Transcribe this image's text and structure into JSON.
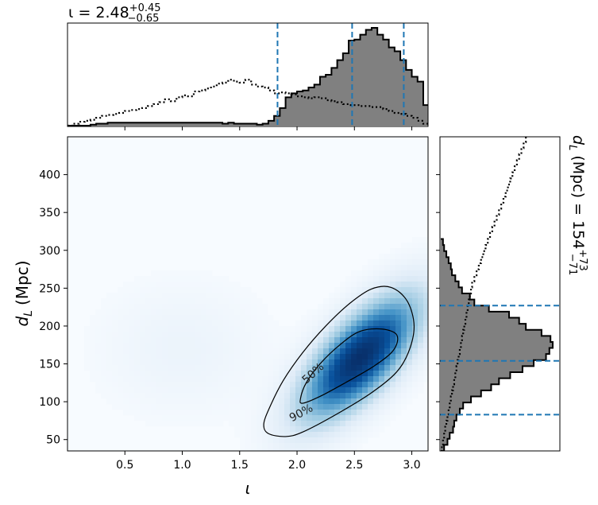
{
  "chart_data": [
    {
      "type": "heatmap",
      "panel": "joint",
      "xlabel": "ι",
      "ylabel_main": "d",
      "ylabel_sub": "L",
      "ylabel_unit": "(Mpc)",
      "xlim": [
        0.0,
        3.14159
      ],
      "ylim": [
        35,
        450
      ],
      "xticks": [
        0.5,
        1.0,
        1.5,
        2.0,
        2.5,
        3.0
      ],
      "xtick_labels": [
        "0.5",
        "1.0",
        "1.5",
        "2.0",
        "2.5",
        "3.0"
      ],
      "yticks": [
        50,
        100,
        150,
        200,
        250,
        300,
        350,
        400
      ],
      "ytick_labels": [
        "50",
        "100",
        "150",
        "200",
        "250",
        "300",
        "350",
        "400"
      ],
      "colormap": "Blues",
      "density_peaks": [
        {
          "iota": 2.55,
          "dL": 158,
          "weight": 1.0
        },
        {
          "iota": 1.0,
          "dL": 170,
          "weight": 0.05
        }
      ],
      "contours": [
        {
          "label": "50%",
          "points": [
            [
              2.05,
              98
            ],
            [
              2.2,
              107
            ],
            [
              2.42,
              125
            ],
            [
              2.67,
              147
            ],
            [
              2.84,
              168
            ],
            [
              2.87,
              188
            ],
            [
              2.74,
              196
            ],
            [
              2.55,
              193
            ],
            [
              2.38,
              176
            ],
            [
              2.2,
              150
            ],
            [
              2.08,
              125
            ],
            [
              2.03,
              104
            ]
          ]
        },
        {
          "label": "90%",
          "points": [
            [
              1.75,
              58
            ],
            [
              1.9,
              54
            ],
            [
              2.05,
              60
            ],
            [
              2.35,
              84
            ],
            [
              2.65,
              112
            ],
            [
              2.86,
              138
            ],
            [
              2.97,
              165
            ],
            [
              3.02,
              200
            ],
            [
              2.96,
              233
            ],
            [
              2.82,
              251
            ],
            [
              2.65,
              249
            ],
            [
              2.46,
              230
            ],
            [
              2.25,
              200
            ],
            [
              2.05,
              165
            ],
            [
              1.88,
              128
            ],
            [
              1.76,
              92
            ],
            [
              1.71,
              70
            ]
          ]
        }
      ]
    },
    {
      "type": "histogram",
      "panel": "top-marginal",
      "title_prefix": "ι = 2.48",
      "title_sup": "+0.45",
      "title_sub": "−0.65",
      "median": 2.48,
      "interval": [
        1.83,
        2.93
      ],
      "edges_start": 0.0,
      "bin_width": 0.05,
      "posterior": [
        0,
        0,
        0,
        0,
        0.01,
        0.02,
        0.02,
        0.03,
        0.03,
        0.03,
        0.03,
        0.03,
        0.03,
        0.03,
        0.03,
        0.03,
        0.03,
        0.03,
        0.03,
        0.03,
        0.03,
        0.03,
        0.03,
        0.03,
        0.03,
        0.03,
        0.03,
        0.02,
        0.03,
        0.02,
        0.02,
        0.02,
        0.02,
        0.01,
        0.02,
        0.05,
        0.1,
        0.18,
        0.29,
        0.33,
        0.35,
        0.36,
        0.39,
        0.42,
        0.5,
        0.52,
        0.59,
        0.67,
        0.74,
        0.87,
        0.88,
        0.93,
        0.98,
        1.0,
        0.93,
        0.88,
        0.8,
        0.76,
        0.67,
        0.57,
        0.5,
        0.45,
        0.21
      ],
      "prior": [
        0,
        0.02,
        0.04,
        0.05,
        0.06,
        0.08,
        0.1,
        0.11,
        0.12,
        0.13,
        0.15,
        0.16,
        0.17,
        0.18,
        0.2,
        0.22,
        0.24,
        0.27,
        0.25,
        0.29,
        0.31,
        0.3,
        0.35,
        0.36,
        0.38,
        0.4,
        0.43,
        0.44,
        0.47,
        0.45,
        0.44,
        0.47,
        0.42,
        0.4,
        0.39,
        0.36,
        0.33,
        0.34,
        0.33,
        0.32,
        0.3,
        0.29,
        0.28,
        0.29,
        0.28,
        0.26,
        0.25,
        0.24,
        0.22,
        0.21,
        0.21,
        0.2,
        0.2,
        0.19,
        0.19,
        0.17,
        0.15,
        0.13,
        0.12,
        0.1,
        0.08,
        0.05,
        0.02
      ]
    },
    {
      "type": "histogram",
      "panel": "right-marginal",
      "orientation": "horizontal",
      "side_label_prefix": "d",
      "side_label_sub": "L",
      "side_label_mid": " (Mpc) = 154",
      "side_label_sup": "+73",
      "side_label_low": "−71",
      "median": 154,
      "interval": [
        83,
        227
      ],
      "edges_start": 35,
      "bin_width": 8,
      "posterior": [
        0.03,
        0.06,
        0.08,
        0.11,
        0.12,
        0.14,
        0.17,
        0.2,
        0.27,
        0.36,
        0.45,
        0.52,
        0.62,
        0.73,
        0.83,
        0.94,
        0.97,
        1.0,
        0.98,
        0.9,
        0.76,
        0.7,
        0.61,
        0.43,
        0.3,
        0.26,
        0.19,
        0.16,
        0.13,
        0.1,
        0.09,
        0.07,
        0.05,
        0.03,
        0.02
      ],
      "prior": [
        0.01,
        0.02,
        0.03,
        0.04,
        0.05,
        0.06,
        0.07,
        0.08,
        0.09,
        0.1,
        0.11,
        0.12,
        0.13,
        0.14,
        0.15,
        0.16,
        0.17,
        0.18,
        0.19,
        0.2,
        0.21,
        0.22,
        0.23,
        0.24,
        0.25,
        0.26,
        0.27,
        0.28,
        0.3,
        0.32,
        0.34,
        0.36,
        0.38,
        0.4,
        0.42,
        0.44,
        0.46,
        0.48,
        0.5,
        0.52,
        0.54,
        0.56,
        0.58,
        0.6,
        0.62,
        0.64,
        0.66,
        0.68,
        0.7,
        0.72,
        0.74,
        0.76
      ]
    }
  ],
  "colors": {
    "posterior_fill": "#808080",
    "outline": "#000000",
    "interval_lines": "#1f77b4",
    "heat_max": "#08306b",
    "heat_min": "#f7fbff"
  }
}
